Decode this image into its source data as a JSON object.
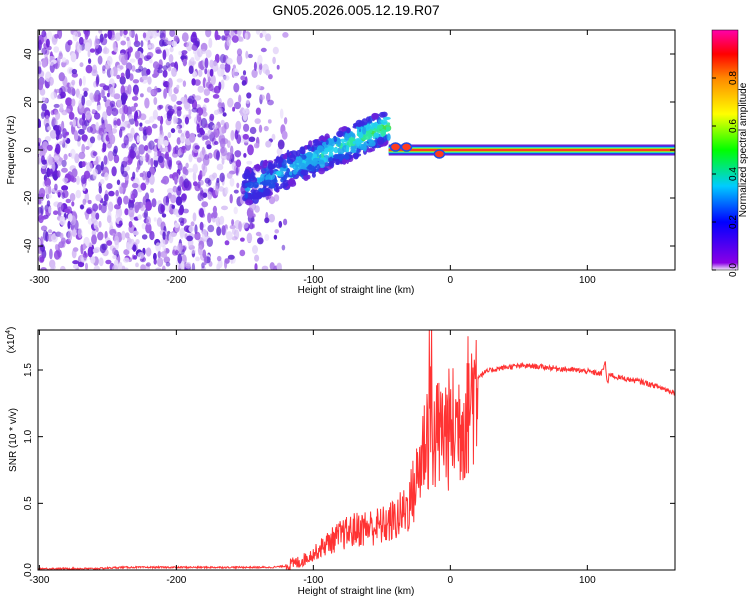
{
  "page_title": "GN05.2026.005.12.19.R07",
  "chart_data": [
    {
      "type": "heatmap",
      "panel": "spectrogram",
      "title": "GN05.2026.005.12.19.R07",
      "xlabel": "Height of straight line (km)",
      "ylabel": "Frequency (Hz)",
      "xlim": [
        -301,
        164
      ],
      "ylim": [
        -50,
        50
      ],
      "xticks": [
        -300,
        -200,
        -100,
        0,
        100
      ],
      "yticks": [
        -40,
        -20,
        0,
        20,
        40
      ],
      "features": [
        {
          "name": "noise region",
          "x_range": [
            -301,
            -120
          ],
          "y_range": [
            -50,
            50
          ]
        },
        {
          "name": "rising tone",
          "x_start": -150,
          "y_start": -16,
          "x_end": -45,
          "y_end": 10
        },
        {
          "name": "steady carrier",
          "x_start": -45,
          "x_end": 164,
          "frequency": 0
        }
      ],
      "colorbar": {
        "label": "Normalized spectral amplitude",
        "range": [
          0.0,
          1.0
        ],
        "ticks": [
          0.0,
          0.2,
          0.4,
          0.6,
          0.8
        ],
        "tick_labels": [
          "0.0",
          "0.2",
          "0.4",
          "0.6",
          "0.8"
        ]
      }
    },
    {
      "type": "line",
      "panel": "snr",
      "xlabel": "Height of straight line (km)",
      "ylabel": "SNR (10 * v/v)",
      "scale_note": "(x10",
      "scale_exp": "4",
      "xlim": [
        -301,
        164
      ],
      "ylim": [
        0.0,
        1.8
      ],
      "xticks": [
        -300,
        -200,
        -100,
        0,
        100
      ],
      "yticks": [
        0.0,
        0.5,
        1.0,
        1.5
      ],
      "ytick_labels": [
        "0.0",
        "0.5",
        "1.0",
        "1.5"
      ],
      "series": [
        {
          "name": "SNR",
          "color": "#ff3333",
          "x": [
            -301,
            -280,
            -260,
            -240,
            -220,
            -200,
            -180,
            -160,
            -140,
            -130,
            -120,
            -110,
            -100,
            -90,
            -80,
            -70,
            -60,
            -50,
            -45,
            -40,
            -35,
            -30,
            -25,
            -20,
            -17,
            -15,
            -14,
            -13,
            -12,
            -10,
            -5,
            0,
            5,
            10,
            15,
            20,
            25,
            30,
            40,
            50,
            60,
            70,
            80,
            90,
            100,
            105,
            110,
            112,
            113,
            114,
            115,
            116,
            117,
            120,
            130,
            140,
            150,
            164
          ],
          "values": [
            0.01,
            0.01,
            0.01,
            0.02,
            0.02,
            0.02,
            0.02,
            0.02,
            0.02,
            0.02,
            0.03,
            0.06,
            0.12,
            0.2,
            0.26,
            0.3,
            0.32,
            0.33,
            0.35,
            0.38,
            0.42,
            0.5,
            0.65,
            0.9,
            1.05,
            0.95,
            1.35,
            1.05,
            0.95,
            1.0,
            1.05,
            1.05,
            1.1,
            1.15,
            1.3,
            1.45,
            1.48,
            1.5,
            1.52,
            1.53,
            1.53,
            1.52,
            1.51,
            1.5,
            1.49,
            1.48,
            1.47,
            1.52,
            1.57,
            1.45,
            1.38,
            1.48,
            1.47,
            1.45,
            1.43,
            1.41,
            1.38,
            1.33
          ]
        }
      ]
    }
  ]
}
